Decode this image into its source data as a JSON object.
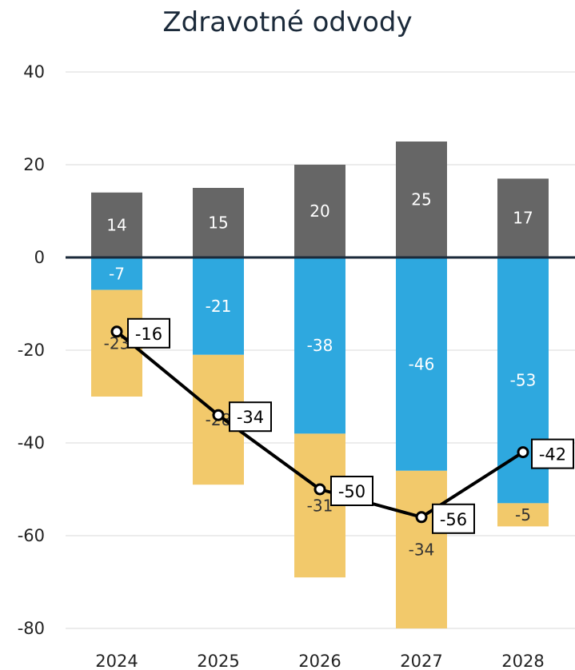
{
  "chart_data": {
    "type": "bar",
    "title": "Zdravotné odvody",
    "categories": [
      "2024",
      "2025",
      "2026",
      "2027",
      "2028"
    ],
    "series": [
      {
        "values": [
          14,
          15,
          20,
          25,
          17
        ],
        "color": "#666666",
        "label_color": "#ffffff"
      },
      {
        "values": [
          -7,
          -21,
          -38,
          -46,
          -53
        ],
        "color": "#2ea8df",
        "label_color": "#ffffff"
      },
      {
        "values": [
          -23,
          -28,
          -31,
          -34,
          -5
        ],
        "color": "#f2c96b",
        "label_color": "#333333"
      }
    ],
    "line": {
      "values": [
        -16,
        -34,
        -50,
        -56,
        -42
      ],
      "labels": [
        "-16",
        "-34",
        "-50",
        "-56",
        "-42"
      ],
      "color": "#000000"
    },
    "ylim": [
      -80,
      40
    ],
    "yticks": [
      "40",
      "20",
      "0",
      "-20",
      "-40",
      "-60",
      "-80"
    ],
    "grid": true,
    "legend": "none"
  }
}
